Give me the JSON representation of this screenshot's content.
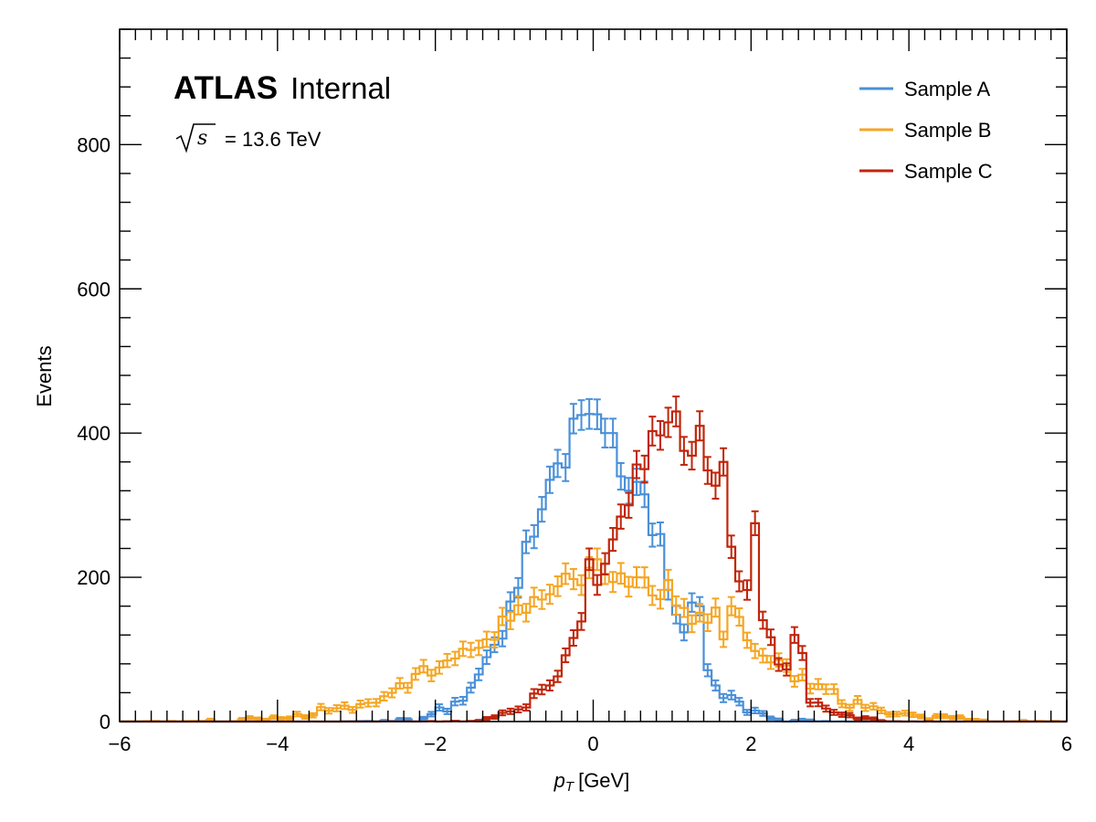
{
  "chart_data": {
    "type": "histogram",
    "xlabel_var": "p",
    "xlabel_sub": "T",
    "xlabel_unit": "[GeV]",
    "ylabel": "Events",
    "xlim": [
      -6,
      6
    ],
    "ylim": [
      0,
      960
    ],
    "xticks": [
      -6,
      -4,
      -2,
      0,
      2,
      4,
      6
    ],
    "yticks": [
      0,
      200,
      400,
      600,
      800
    ],
    "bin_width": 0.1,
    "grid": false,
    "legend_position": "top-right",
    "annotation": {
      "experiment": "ATLAS",
      "status": "Internal",
      "energy_text": "= 13.6 TeV",
      "energy_symbol": "s"
    },
    "series": [
      {
        "name": "Sample A",
        "color": "#4A90D9",
        "peak": 415,
        "mean": 0.0,
        "sigma": 0.76,
        "overrides": [
          [
            -0.3,
            420
          ],
          [
            -0.2,
            425
          ],
          [
            0.1,
            400
          ],
          [
            0.2,
            400
          ],
          [
            0.3,
            340
          ],
          [
            0.4,
            320
          ],
          [
            0.6,
            315
          ],
          [
            0.8,
            260
          ],
          [
            1.2,
            165
          ],
          [
            1.3,
            160
          ]
        ]
      },
      {
        "name": "Sample B",
        "color": "#F5A623",
        "peak": 195,
        "mean": 0.2,
        "sigma": 1.55,
        "overrides": [
          [
            -0.4,
            205
          ],
          [
            0.0,
            225
          ],
          [
            0.5,
            200
          ],
          [
            1.5,
            158
          ],
          [
            1.7,
            160
          ],
          [
            1.8,
            145
          ],
          [
            2.6,
            65
          ],
          [
            3.0,
            45
          ],
          [
            3.3,
            30
          ]
        ]
      },
      {
        "name": "Sample C",
        "color": "#C0250A",
        "peak": 405,
        "mean": 1.0,
        "sigma": 0.78,
        "overrides": [
          [
            -0.1,
            225
          ],
          [
            0.6,
            350
          ],
          [
            1.0,
            430
          ],
          [
            1.3,
            410
          ],
          [
            1.6,
            360
          ],
          [
            2.0,
            275
          ],
          [
            2.5,
            120
          ],
          [
            2.6,
            95
          ]
        ]
      }
    ]
  }
}
